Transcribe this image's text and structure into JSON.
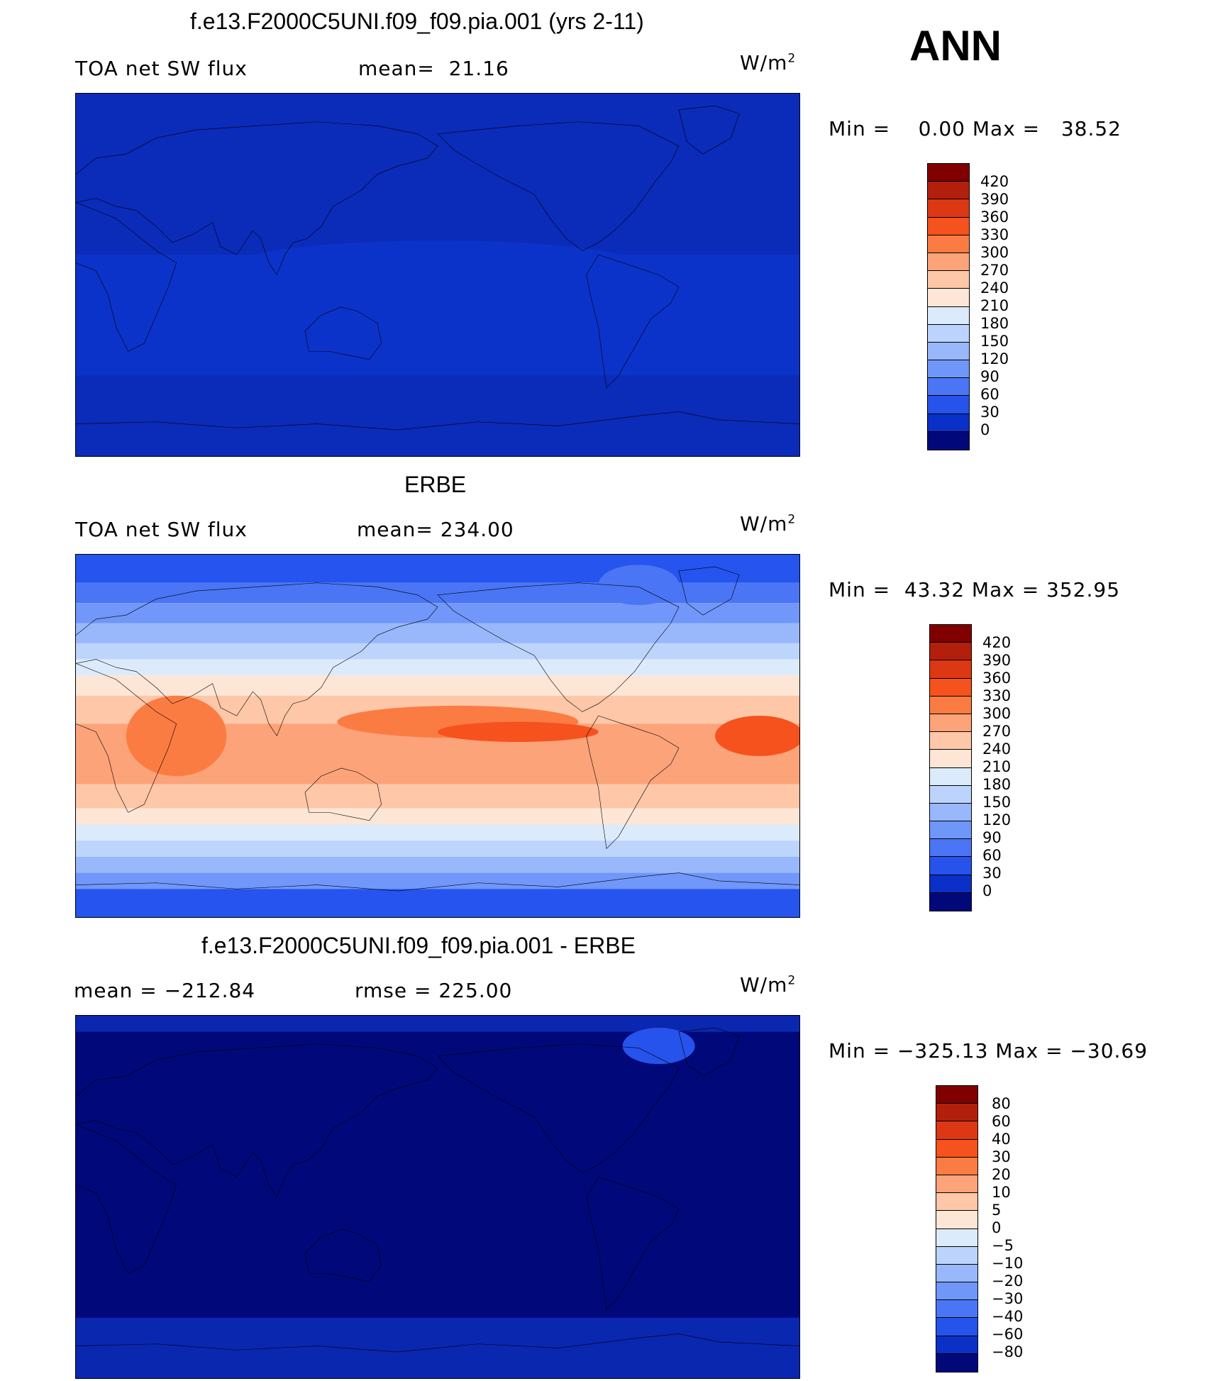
{
  "season": "ANN",
  "units_prefix": "W/m",
  "units_sup": "2",
  "panels": [
    {
      "title": "f.e13.F2000C5UNI.f09_f09.pia.001 (yrs 2-11)",
      "left_label": "TOA net SW flux",
      "mid_label": "mean=  21.16",
      "range_label": "Min =    0.00 Max =   38.52",
      "colorbar_ticks": [
        "420",
        "390",
        "360",
        "330",
        "300",
        "270",
        "240",
        "210",
        "180",
        "150",
        "120",
        "90",
        "60",
        "30",
        "0"
      ]
    },
    {
      "title": "ERBE",
      "left_label": "TOA net SW flux",
      "mid_label": "mean= 234.00",
      "range_label": "Min =  43.32 Max = 352.95",
      "colorbar_ticks": [
        "420",
        "390",
        "360",
        "330",
        "300",
        "270",
        "240",
        "210",
        "180",
        "150",
        "120",
        "90",
        "60",
        "30",
        "0"
      ]
    },
    {
      "title": "f.e13.F2000C5UNI.f09_f09.pia.001 - ERBE",
      "left_label": "mean = −212.84",
      "mid_label": "rmse = 225.00",
      "range_label": "Min = −325.13 Max = −30.69",
      "colorbar_ticks": [
        "80",
        "60",
        "40",
        "30",
        "20",
        "10",
        "5",
        "0",
        "−5",
        "−10",
        "−20",
        "−30",
        "−40",
        "−60",
        "−80"
      ]
    }
  ],
  "colors": {
    "scale16": [
      "#800000",
      "#b2200c",
      "#dc3813",
      "#f6521e",
      "#fb7c43",
      "#fca37a",
      "#fdc7a8",
      "#fde6d6",
      "#dcebfb",
      "#bcd4fb",
      "#98b8fb",
      "#6f97fa",
      "#4a76f5",
      "#2553ec",
      "#0a30c8",
      "#01097a"
    ],
    "map_model": [
      "#0b2bb9",
      "#0c33c9",
      "#1c47e0"
    ],
    "map_erbe": [
      "#2554ee",
      "#4a75f4",
      "#7097f9",
      "#99b8fb",
      "#bdd5fb",
      "#dcebfb",
      "#fde6d6",
      "#fdc7a8",
      "#fca37a",
      "#fb7c43",
      "#f6521e"
    ],
    "map_diff": [
      "#01097a",
      "#0a27b0",
      "#2553ec"
    ]
  },
  "chart_data": [
    {
      "type": "heatmap",
      "title": "f.e13.F2000C5UNI.f09_f09.pia.001 (yrs 2-11)",
      "variable": "TOA net SW flux",
      "units": "W/m2",
      "mean": 21.16,
      "min": 0.0,
      "max": 38.52,
      "contour_levels": [
        0,
        30,
        60,
        90,
        120,
        150,
        180,
        210,
        240,
        270,
        300,
        330,
        360,
        390,
        420
      ]
    },
    {
      "type": "heatmap",
      "title": "ERBE",
      "variable": "TOA net SW flux",
      "units": "W/m2",
      "mean": 234.0,
      "min": 43.32,
      "max": 352.95,
      "contour_levels": [
        0,
        30,
        60,
        90,
        120,
        150,
        180,
        210,
        240,
        270,
        300,
        330,
        360,
        390,
        420
      ]
    },
    {
      "type": "heatmap",
      "title": "f.e13.F2000C5UNI.f09_f09.pia.001 - ERBE",
      "units": "W/m2",
      "mean": -212.84,
      "rmse": 225.0,
      "min": -325.13,
      "max": -30.69,
      "contour_levels": [
        -80,
        -60,
        -40,
        -30,
        -20,
        -10,
        -5,
        0,
        5,
        10,
        20,
        30,
        40,
        60,
        80
      ]
    }
  ]
}
